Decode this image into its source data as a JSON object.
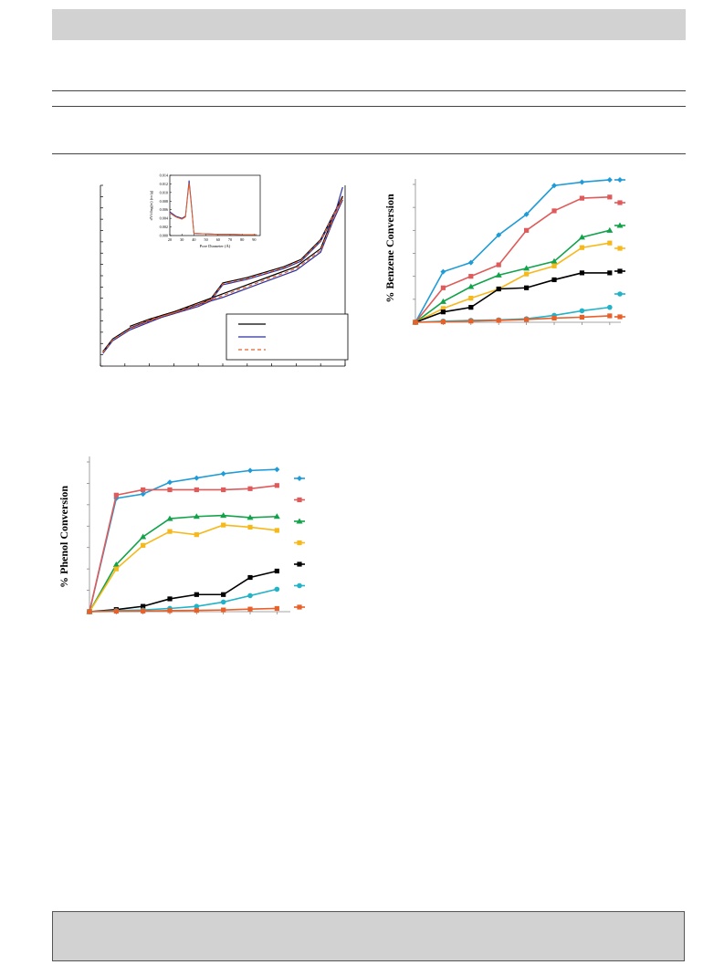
{
  "page": {
    "top_band_text": "",
    "bottom_band_text": ""
  },
  "colors": {
    "blue": "#1f9bd7",
    "red": "#e05a5a",
    "green": "#12a24a",
    "yellow": "#f7b81a",
    "black": "#000000",
    "cyan": "#22b3c8",
    "orange": "#e8602a",
    "isotherm_black": "#000000",
    "isotherm_blue": "#2b2fa0",
    "isotherm_orange": "#e8602a"
  },
  "chart_data": [
    {
      "id": "isotherm",
      "type": "line",
      "xlim": [
        0,
        1
      ],
      "ylim": [
        0,
        1
      ],
      "legend_entries": [
        "",
        "",
        ""
      ],
      "legend_position": "bottom-right",
      "series": [
        {
          "name": "",
          "style": "solid",
          "color_key": "isotherm_black",
          "adsorption": [
            [
              0.01,
              0.08
            ],
            [
              0.05,
              0.15
            ],
            [
              0.12,
              0.21
            ],
            [
              0.25,
              0.28
            ],
            [
              0.4,
              0.34
            ],
            [
              0.45,
              0.37
            ],
            [
              0.5,
              0.46
            ],
            [
              0.6,
              0.49
            ],
            [
              0.75,
              0.55
            ],
            [
              0.82,
              0.59
            ],
            [
              0.9,
              0.7
            ],
            [
              0.96,
              0.86
            ],
            [
              0.99,
              0.94
            ]
          ],
          "desorption": [
            [
              0.99,
              0.94
            ],
            [
              0.95,
              0.82
            ],
            [
              0.9,
              0.65
            ],
            [
              0.8,
              0.55
            ],
            [
              0.7,
              0.5
            ],
            [
              0.6,
              0.45
            ],
            [
              0.5,
              0.4
            ],
            [
              0.4,
              0.35
            ],
            [
              0.3,
              0.3
            ],
            [
              0.2,
              0.26
            ],
            [
              0.12,
              0.22
            ]
          ]
        },
        {
          "name": "",
          "style": "solid",
          "color_key": "isotherm_blue",
          "adsorption": [
            [
              0.01,
              0.07
            ],
            [
              0.05,
              0.14
            ],
            [
              0.12,
              0.2
            ],
            [
              0.25,
              0.27
            ],
            [
              0.4,
              0.33
            ],
            [
              0.45,
              0.36
            ],
            [
              0.5,
              0.45
            ],
            [
              0.6,
              0.48
            ],
            [
              0.75,
              0.54
            ],
            [
              0.82,
              0.58
            ],
            [
              0.9,
              0.69
            ],
            [
              0.96,
              0.85
            ],
            [
              0.99,
              0.99
            ]
          ],
          "desorption": [
            [
              0.99,
              0.92
            ],
            [
              0.95,
              0.8
            ],
            [
              0.9,
              0.63
            ],
            [
              0.8,
              0.53
            ],
            [
              0.7,
              0.48
            ],
            [
              0.6,
              0.43
            ],
            [
              0.5,
              0.38
            ],
            [
              0.4,
              0.34
            ],
            [
              0.3,
              0.29
            ],
            [
              0.2,
              0.25
            ],
            [
              0.12,
              0.21
            ]
          ]
        },
        {
          "name": "",
          "style": "dashed",
          "color_key": "isotherm_orange",
          "adsorption": [
            [
              0.01,
              0.075
            ],
            [
              0.05,
              0.145
            ],
            [
              0.12,
              0.205
            ],
            [
              0.25,
              0.275
            ],
            [
              0.4,
              0.335
            ],
            [
              0.45,
              0.365
            ],
            [
              0.5,
              0.455
            ],
            [
              0.6,
              0.485
            ],
            [
              0.75,
              0.545
            ],
            [
              0.82,
              0.585
            ],
            [
              0.9,
              0.695
            ],
            [
              0.96,
              0.855
            ],
            [
              0.99,
              0.93
            ]
          ],
          "desorption": [
            [
              0.99,
              0.93
            ],
            [
              0.95,
              0.81
            ],
            [
              0.9,
              0.64
            ],
            [
              0.8,
              0.54
            ],
            [
              0.7,
              0.49
            ],
            [
              0.6,
              0.44
            ],
            [
              0.5,
              0.39
            ],
            [
              0.4,
              0.345
            ],
            [
              0.3,
              0.295
            ],
            [
              0.2,
              0.255
            ],
            [
              0.12,
              0.215
            ]
          ]
        }
      ],
      "inset": {
        "type": "line",
        "xlabel": "Pore Diameter (Å)",
        "ylabel": "dV/dlog(w) (cc/g)",
        "x_ticks": [
          "20",
          "30",
          "40",
          "50",
          "60",
          "70",
          "80",
          "90"
        ],
        "y_ticks": [
          "0.000",
          "0.002",
          "0.004",
          "0.006",
          "0.008",
          "0.010",
          "0.012",
          "0.014"
        ],
        "xlim": [
          20,
          95
        ],
        "ylim": [
          0,
          0.014
        ],
        "series": [
          {
            "color_key": "isotherm_blue",
            "points": [
              [
                20,
                0.0055
              ],
              [
                25,
                0.0045
              ],
              [
                30,
                0.004
              ],
              [
                33,
                0.0045
              ],
              [
                36,
                0.0128
              ],
              [
                38,
                0.007
              ],
              [
                40,
                0.0005
              ],
              [
                50,
                0.0004
              ],
              [
                60,
                0.0003
              ],
              [
                70,
                0.0003
              ],
              [
                80,
                0.0002
              ],
              [
                92,
                0.0002
              ]
            ]
          },
          {
            "color_key": "isotherm_orange",
            "points": [
              [
                20,
                0.0052
              ],
              [
                25,
                0.0043
              ],
              [
                30,
                0.0038
              ],
              [
                33,
                0.0043
              ],
              [
                36,
                0.0122
              ],
              [
                38,
                0.0066
              ],
              [
                40,
                0.0005
              ],
              [
                50,
                0.0004
              ],
              [
                60,
                0.0003
              ],
              [
                70,
                0.0003
              ],
              [
                80,
                0.0002
              ],
              [
                92,
                0.0002
              ]
            ]
          }
        ]
      }
    },
    {
      "id": "benzene",
      "type": "line",
      "ylabel": "% Benzene Conversion",
      "x": [
        0,
        1,
        2,
        3,
        4,
        5,
        6,
        7
      ],
      "xlim": [
        0,
        7.4
      ],
      "ylim": [
        0,
        6
      ],
      "legend_position": "right",
      "series": [
        {
          "name": "",
          "marker": "diamond",
          "color_key": "blue",
          "values": [
            0,
            2.2,
            2.6,
            3.8,
            4.7,
            5.95,
            6.1,
            6.2
          ]
        },
        {
          "name": "",
          "marker": "square",
          "color_key": "red",
          "values": [
            0,
            1.5,
            2.0,
            2.5,
            4.0,
            4.85,
            5.4,
            5.45
          ]
        },
        {
          "name": "",
          "marker": "triangle",
          "color_key": "green",
          "values": [
            0,
            0.9,
            1.55,
            2.05,
            2.35,
            2.65,
            3.7,
            4.0
          ]
        },
        {
          "name": "",
          "marker": "square",
          "color_key": "yellow",
          "values": [
            0,
            0.6,
            1.05,
            1.45,
            2.1,
            2.45,
            3.25,
            3.45
          ]
        },
        {
          "name": "",
          "marker": "square",
          "color_key": "black",
          "values": [
            0,
            0.45,
            0.65,
            1.45,
            1.5,
            1.85,
            2.15,
            2.15
          ]
        },
        {
          "name": "",
          "marker": "circle",
          "color_key": "cyan",
          "values": [
            0,
            0.05,
            0.08,
            0.1,
            0.15,
            0.3,
            0.5,
            0.65
          ]
        },
        {
          "name": "",
          "marker": "square",
          "color_key": "orange",
          "values": [
            0,
            0.02,
            0.05,
            0.08,
            0.12,
            0.18,
            0.22,
            0.28
          ]
        }
      ]
    },
    {
      "id": "phenol",
      "type": "line",
      "ylabel": "% Phenol Conversion",
      "x": [
        0,
        1,
        2,
        3,
        4,
        5,
        6,
        7
      ],
      "xlim": [
        0,
        7.5
      ],
      "ylim": [
        0,
        7
      ],
      "legend_position": "right",
      "series": [
        {
          "name": "",
          "marker": "diamond",
          "color_key": "blue",
          "values": [
            0,
            5.3,
            5.5,
            6.05,
            6.25,
            6.45,
            6.6,
            6.65
          ]
        },
        {
          "name": "",
          "marker": "square",
          "color_key": "red",
          "values": [
            0,
            5.45,
            5.7,
            5.7,
            5.7,
            5.7,
            5.75,
            5.9
          ]
        },
        {
          "name": "",
          "marker": "triangle",
          "color_key": "green",
          "values": [
            0,
            2.2,
            3.5,
            4.35,
            4.45,
            4.5,
            4.4,
            4.45
          ]
        },
        {
          "name": "",
          "marker": "square",
          "color_key": "yellow",
          "values": [
            0,
            2.0,
            3.1,
            3.75,
            3.6,
            4.05,
            3.95,
            3.8
          ]
        },
        {
          "name": "",
          "marker": "square",
          "color_key": "black",
          "values": [
            0,
            0.1,
            0.25,
            0.6,
            0.8,
            0.8,
            1.6,
            1.9
          ]
        },
        {
          "name": "",
          "marker": "circle",
          "color_key": "cyan",
          "values": [
            0,
            0.05,
            0.08,
            0.15,
            0.25,
            0.45,
            0.75,
            1.05
          ]
        },
        {
          "name": "",
          "marker": "square",
          "color_key": "orange",
          "values": [
            0,
            0.02,
            0.03,
            0.05,
            0.06,
            0.08,
            0.12,
            0.15
          ]
        }
      ]
    }
  ]
}
